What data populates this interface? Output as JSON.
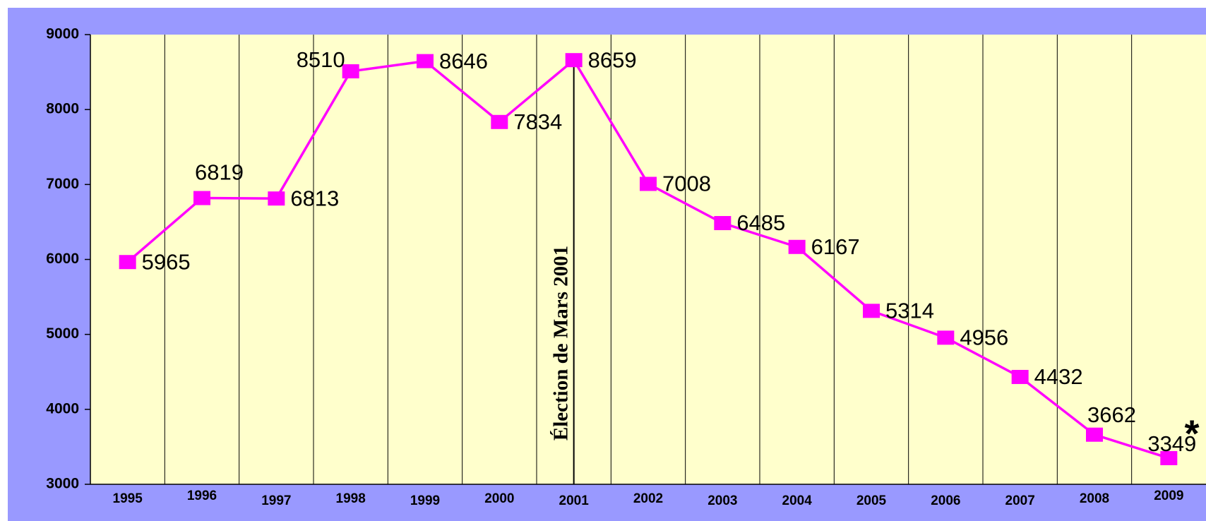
{
  "chart_data": {
    "type": "line",
    "categories": [
      "1995",
      "1996",
      "1997",
      "1998",
      "1999",
      "2000",
      "2001",
      "2002",
      "2003",
      "2004",
      "2005",
      "2006",
      "2007",
      "2008",
      "2009"
    ],
    "series": [
      {
        "color": "#ff00ff",
        "values": [
          5965,
          6819,
          6813,
          8510,
          8646,
          7834,
          8659,
          7008,
          6485,
          6167,
          5314,
          4956,
          4432,
          3662,
          3349
        ]
      }
    ],
    "ylim": [
      3000,
      9000
    ],
    "yticks": [
      3000,
      4000,
      5000,
      6000,
      7000,
      8000,
      9000
    ],
    "grid": true,
    "annotations": [
      "Élection de Mars 2001",
      "*"
    ]
  }
}
